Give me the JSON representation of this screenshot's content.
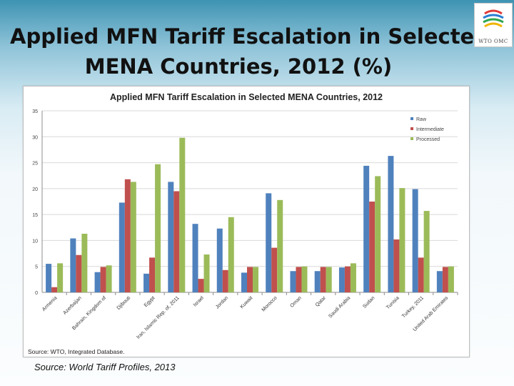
{
  "slide": {
    "title_line1": "Applied MFN Tariff Escalation in Selected",
    "title_line2": "MENA Countries, 2012 (%)",
    "source": "Source: World Tariff Profiles, 2013",
    "logo_text": "WTO OMC"
  },
  "chart_data": {
    "type": "bar",
    "title": "Applied MFN Tariff Escalation in Selected MENA Countries, 2012",
    "source": "Source: WTO, Integrated Database.",
    "xlabel": "",
    "ylabel": "",
    "ylim": [
      0,
      35
    ],
    "yticks": [
      0,
      5,
      10,
      15,
      20,
      25,
      30,
      35
    ],
    "grid": true,
    "legend_position": "top-right",
    "categories": [
      "Armenia",
      "Azerbaijan",
      "Bahrain, Kingdom of",
      "Djibouti",
      "Egypt",
      "Iran, Islamic Rep. of, 2011",
      "Israel",
      "Jordan",
      "Kuwait",
      "Morocco",
      "Oman",
      "Qatar",
      "Saudi Arabia",
      "Sudan",
      "Tunisia",
      "Turkey, 2011",
      "United Arab Emirates"
    ],
    "series": [
      {
        "name": "Raw",
        "color": "#4f81bd",
        "values": [
          5.5,
          10.4,
          3.9,
          17.3,
          3.6,
          21.3,
          13.2,
          12.3,
          3.8,
          19.1,
          4.1,
          4.1,
          4.8,
          24.4,
          26.3,
          19.9,
          4.1
        ]
      },
      {
        "name": "Intermediate",
        "color": "#c0504d",
        "values": [
          1.0,
          7.2,
          4.9,
          21.8,
          6.7,
          19.5,
          2.6,
          4.3,
          4.9,
          8.6,
          4.9,
          4.9,
          5.0,
          17.5,
          10.2,
          6.7,
          4.9
        ]
      },
      {
        "name": "Processed",
        "color": "#9bbb59",
        "values": [
          5.6,
          11.3,
          5.2,
          21.3,
          24.7,
          29.8,
          7.3,
          14.5,
          4.9,
          17.8,
          5.0,
          4.9,
          5.6,
          22.4,
          20.1,
          15.7,
          5.0
        ]
      }
    ]
  }
}
